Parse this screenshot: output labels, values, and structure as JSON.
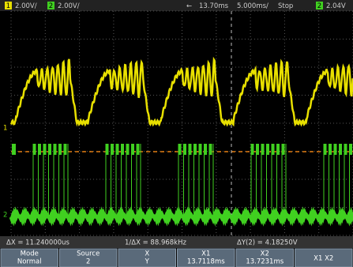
{
  "header": {
    "ch1": "1",
    "ch1_scale": "2.00V/",
    "ch2": "2",
    "ch2_scale": "2.00V/",
    "position": "13.70ms",
    "timebase": "5.000ms/",
    "status": "Stop",
    "trigger_source": "2",
    "trigger_level": "2.04V"
  },
  "measurements": [
    "ΔX = 11.240000us",
    "1/ΔX = 88.968kHz",
    "ΔY(2) = 4.18250V"
  ],
  "softkeys": [
    {
      "lines": [
        "Mode",
        "Normal"
      ]
    },
    {
      "lines": [
        "Source",
        "2"
      ]
    },
    {
      "lines": [
        "X",
        "Y"
      ]
    },
    {
      "lines": [
        "X1",
        "13.7118ms"
      ]
    },
    {
      "lines": [
        "X2",
        "13.7231ms"
      ]
    },
    {
      "lines": [
        "X1 X2"
      ]
    }
  ]
}
